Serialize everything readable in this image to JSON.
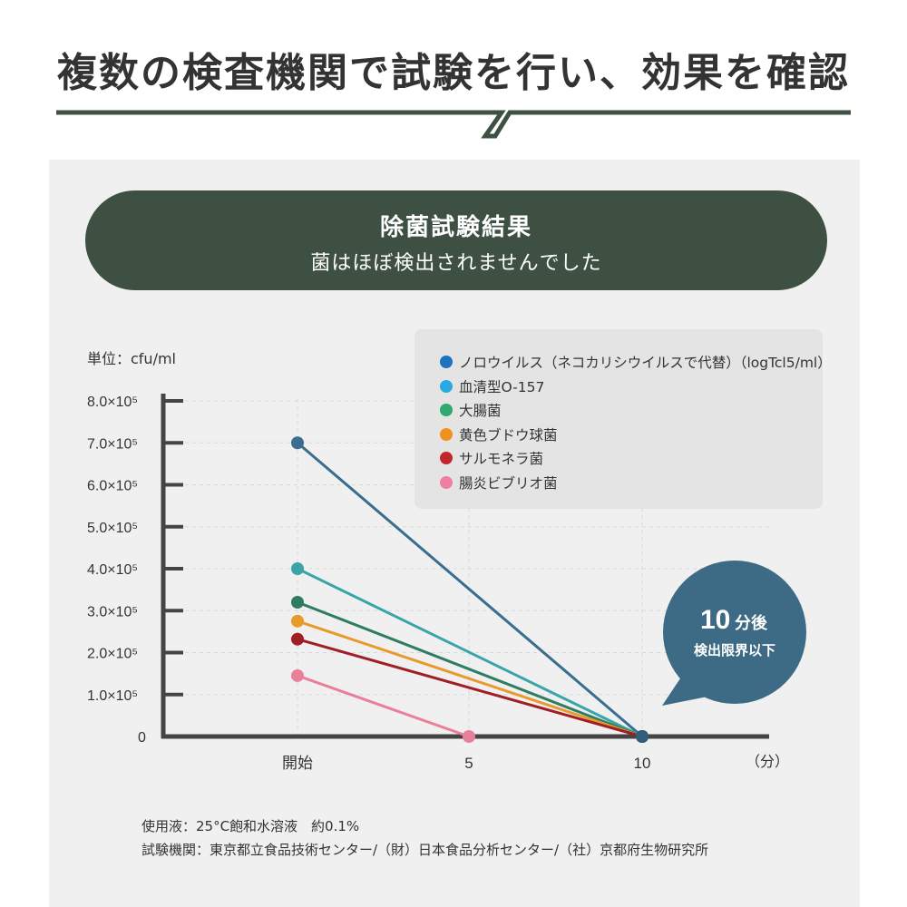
{
  "headline": "複数の検査機関で試験を行い、効果を確認",
  "banner": {
    "title": "除菌試験結果",
    "subtitle": "菌はほぼ検出されませんでした"
  },
  "unit_label": "単位：cfu/ml",
  "callout": {
    "big": "10",
    "small": "分後",
    "line2": "検出限界以下"
  },
  "footnotes": {
    "line1": "使用液：25°C飽和水溶液　約0.1%",
    "line2": "試験機関：東京都立食品技術センター/（財）日本食品分析センター/（社）京都府生物研究所"
  },
  "colors": {
    "heading_rule": "#3e5042",
    "banner": "#3e5042",
    "callout": "#3d6b85",
    "axis": "#444444"
  },
  "chart_data": {
    "type": "line",
    "x_unit_label": "（分）",
    "x": [
      0,
      5,
      10
    ],
    "x_tick_labels": [
      "開始",
      "5",
      "10"
    ],
    "y_tick_labels": [
      "0",
      "1.0×10⁵",
      "2.0×10⁵",
      "3.0×10⁵",
      "4.0×10⁵",
      "5.0×10⁵",
      "6.0×10⁵",
      "7.0×10⁵",
      "8.0×10⁵"
    ],
    "ylim": [
      0,
      800000
    ],
    "grid": true,
    "legend_position": "top-right",
    "series": [
      {
        "name": "ノロウイルス（ネコカリシウイルスで代替）（logTcl5/ml）",
        "color": "#3a6e8f",
        "dot": "#1e73be",
        "points": [
          [
            0,
            700000
          ],
          [
            10,
            0
          ]
        ]
      },
      {
        "name": "血清型O-157",
        "color": "#3aa5a8",
        "dot": "#29aae1",
        "points": [
          [
            0,
            400000
          ],
          [
            10,
            0
          ]
        ]
      },
      {
        "name": "大腸菌",
        "color": "#2e7d62",
        "dot": "#2eaa6e",
        "points": [
          [
            0,
            320000
          ],
          [
            10,
            0
          ]
        ]
      },
      {
        "name": "黄色ブドウ球菌",
        "color": "#e89a2c",
        "dot": "#f0911e",
        "points": [
          [
            0,
            275000
          ],
          [
            10,
            0
          ]
        ]
      },
      {
        "name": "サルモネラ菌",
        "color": "#a01e24",
        "dot": "#c0272d",
        "points": [
          [
            0,
            232000
          ],
          [
            10,
            0
          ]
        ]
      },
      {
        "name": "腸炎ビブリオ菌",
        "color": "#e8809a",
        "dot": "#ee7fa0",
        "points": [
          [
            0,
            145000
          ],
          [
            5,
            0
          ]
        ]
      }
    ]
  }
}
